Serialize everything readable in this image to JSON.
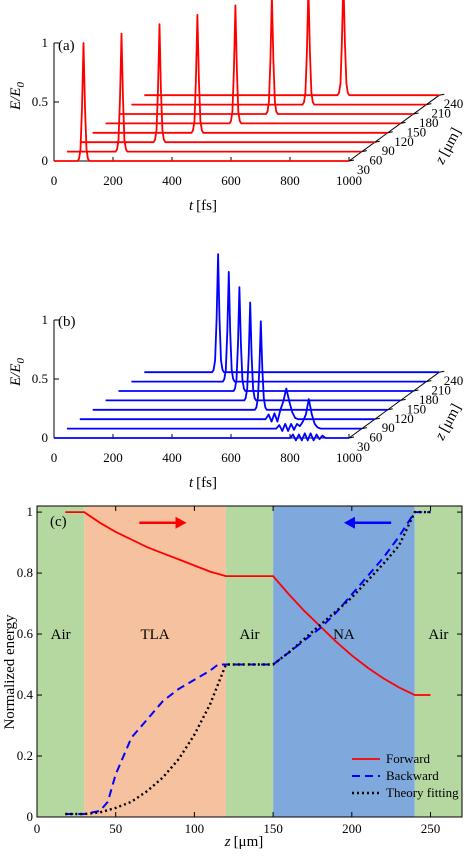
{
  "chart_data": [
    {
      "panel": "(a)",
      "type": "line",
      "ylabel": "E/E",
      "ylabel_sub": "0",
      "xlabel_prefix": "t",
      "xlabel_unit": "[fs]",
      "zlabel_prefix": "z",
      "zlabel_unit": "[μm]",
      "x_ticks": [
        "0",
        "200",
        "400",
        "600",
        "800",
        "1000"
      ],
      "y_ticks": [
        "0",
        "0.5",
        "1"
      ],
      "z_ticks": [
        "30",
        "60",
        "90",
        "120",
        "150",
        "180",
        "210",
        "240"
      ],
      "x_range": [
        0,
        1000
      ],
      "y_range": [
        0,
        1
      ],
      "z_values": [
        30,
        60,
        90,
        120,
        150,
        180,
        210,
        240
      ],
      "color": "#ff0000",
      "series": [
        {
          "z": 30,
          "x": [
            0,
            80,
            85,
            90,
            95,
            100,
            105,
            110,
            115,
            120,
            1000
          ],
          "y": [
            0,
            0,
            0.02,
            0.1,
            0.45,
            1.0,
            0.45,
            0.1,
            0.02,
            0,
            0
          ]
        },
        {
          "z": 60,
          "x": [
            0,
            165,
            170,
            175,
            180,
            185,
            190,
            195,
            200,
            205,
            1000
          ],
          "y": [
            0,
            0,
            0.02,
            0.1,
            0.45,
            1.0,
            0.45,
            0.1,
            0.02,
            0,
            0
          ]
        },
        {
          "z": 90,
          "x": [
            0,
            250,
            255,
            260,
            265,
            270,
            275,
            280,
            285,
            290,
            1000
          ],
          "y": [
            0,
            0,
            0.02,
            0.1,
            0.45,
            1.0,
            0.45,
            0.1,
            0.02,
            0,
            0
          ]
        },
        {
          "z": 120,
          "x": [
            0,
            335,
            340,
            345,
            350,
            355,
            360,
            365,
            370,
            375,
            1000
          ],
          "y": [
            0,
            0,
            0.02,
            0.1,
            0.45,
            1.0,
            0.45,
            0.1,
            0.02,
            0,
            0
          ]
        },
        {
          "z": 150,
          "x": [
            0,
            420,
            425,
            430,
            435,
            440,
            445,
            450,
            455,
            460,
            1000
          ],
          "y": [
            0,
            0,
            0.02,
            0.1,
            0.45,
            1.0,
            0.45,
            0.1,
            0.02,
            0,
            0
          ]
        },
        {
          "z": 180,
          "x": [
            0,
            500,
            505,
            510,
            515,
            520,
            525,
            530,
            535,
            540,
            1000
          ],
          "y": [
            0,
            0,
            0.02,
            0.1,
            0.45,
            1.0,
            0.45,
            0.1,
            0.02,
            0,
            0
          ]
        },
        {
          "z": 210,
          "x": [
            0,
            580,
            585,
            590,
            595,
            600,
            605,
            610,
            615,
            620,
            1000
          ],
          "y": [
            0,
            0,
            0.02,
            0.1,
            0.45,
            1.0,
            0.45,
            0.1,
            0.02,
            0,
            0
          ]
        },
        {
          "z": 240,
          "x": [
            0,
            655,
            660,
            665,
            670,
            675,
            680,
            685,
            690,
            695,
            1000
          ],
          "y": [
            0,
            0,
            0.02,
            0.1,
            0.45,
            1.0,
            0.45,
            0.1,
            0.02,
            0,
            0
          ]
        }
      ]
    },
    {
      "panel": "(b)",
      "type": "line",
      "ylabel": "E/E",
      "ylabel_sub": "0",
      "xlabel_prefix": "t",
      "xlabel_unit": "[fs]",
      "zlabel_prefix": "z",
      "zlabel_unit": "[μm]",
      "x_ticks": [
        "0",
        "200",
        "400",
        "600",
        "800",
        "1000"
      ],
      "y_ticks": [
        "0",
        "0.5",
        "1"
      ],
      "z_ticks": [
        "30",
        "60",
        "90",
        "120",
        "150",
        "180",
        "210",
        "240"
      ],
      "x_range": [
        0,
        1000
      ],
      "y_range": [
        0,
        1
      ],
      "z_values": [
        30,
        60,
        90,
        120,
        150,
        180,
        210,
        240
      ],
      "color": "#0000ff",
      "series": [
        {
          "z": 30,
          "x": [
            0,
            800,
            810,
            820,
            830,
            840,
            850,
            860,
            870,
            880,
            890,
            900,
            910,
            920,
            930,
            1000
          ],
          "y": [
            0,
            0,
            0.03,
            -0.02,
            0.03,
            -0.02,
            0.04,
            -0.02,
            0.04,
            -0.02,
            0.03,
            -0.01,
            0.02,
            0,
            0,
            0
          ]
        },
        {
          "z": 60,
          "x": [
            0,
            710,
            720,
            730,
            740,
            750,
            760,
            770,
            780,
            790,
            800,
            810,
            820,
            830,
            840,
            850,
            860,
            1000
          ],
          "y": [
            0,
            0,
            0.03,
            -0.02,
            0.04,
            -0.02,
            0.04,
            -0.01,
            0.04,
            0.02,
            0.06,
            0.12,
            0.25,
            0.12,
            0.04,
            0.01,
            0,
            0
          ]
        },
        {
          "z": 90,
          "x": [
            0,
            630,
            640,
            650,
            660,
            670,
            680,
            690,
            700,
            710,
            720,
            730,
            740,
            1000
          ],
          "y": [
            0,
            0,
            0.04,
            -0.02,
            0.05,
            -0.02,
            0.08,
            0.15,
            0.26,
            0.15,
            0.06,
            0.01,
            0,
            0
          ]
        },
        {
          "z": 120,
          "x": [
            0,
            550,
            555,
            560,
            565,
            570,
            575,
            580,
            585,
            590,
            1000
          ],
          "y": [
            0,
            0,
            0.02,
            0.1,
            0.35,
            0.75,
            0.35,
            0.1,
            0.02,
            0,
            0
          ]
        },
        {
          "z": 150,
          "x": [
            0,
            470,
            475,
            480,
            485,
            490,
            495,
            500,
            505,
            510,
            1000
          ],
          "y": [
            0,
            0,
            0.02,
            0.1,
            0.38,
            0.83,
            0.38,
            0.1,
            0.02,
            0,
            0
          ]
        },
        {
          "z": 180,
          "x": [
            0,
            390,
            395,
            400,
            405,
            410,
            415,
            420,
            425,
            430,
            1000
          ],
          "y": [
            0,
            0,
            0.02,
            0.1,
            0.4,
            0.88,
            0.4,
            0.1,
            0.02,
            0,
            0
          ]
        },
        {
          "z": 210,
          "x": [
            0,
            310,
            315,
            320,
            325,
            330,
            335,
            340,
            345,
            350,
            1000
          ],
          "y": [
            0,
            0,
            0.02,
            0.1,
            0.42,
            0.93,
            0.42,
            0.1,
            0.02,
            0,
            0
          ]
        },
        {
          "z": 240,
          "x": [
            0,
            230,
            235,
            240,
            245,
            250,
            255,
            260,
            265,
            270,
            1000
          ],
          "y": [
            0,
            0,
            0.02,
            0.1,
            0.45,
            1.0,
            0.45,
            0.1,
            0.02,
            0,
            0
          ]
        }
      ]
    },
    {
      "panel": "(c)",
      "type": "line",
      "ylabel": "Normalized energy",
      "xlabel_prefix": "z",
      "xlabel_unit": "[μm]",
      "xlim": [
        0,
        270
      ],
      "ylim": [
        0,
        1.02
      ],
      "x_ticks": [
        0,
        50,
        100,
        150,
        200,
        250
      ],
      "y_ticks": [
        0,
        0.2,
        0.4,
        0.6,
        0.8,
        1
      ],
      "regions": [
        {
          "label": "Air",
          "x0": 0,
          "x1": 30,
          "color": "#b5d7a0"
        },
        {
          "label": "TLA",
          "x0": 30,
          "x1": 120,
          "color": "#f6c19e"
        },
        {
          "label": "Air",
          "x0": 120,
          "x1": 150,
          "color": "#b5d7a0"
        },
        {
          "label": "NA",
          "x0": 150,
          "x1": 240,
          "color": "#7fa9dd"
        },
        {
          "label": "Air",
          "x0": 240,
          "x1": 270,
          "color": "#b5d7a0"
        }
      ],
      "arrows": [
        {
          "direction": "right",
          "color": "#ff0000",
          "x_from": 65,
          "x_to": 95,
          "y": 0.965
        },
        {
          "direction": "left",
          "color": "#0000ff",
          "x_from": 225,
          "x_to": 195,
          "y": 0.965
        }
      ],
      "series": [
        {
          "name": "Forward",
          "style": "solid",
          "color": "#ff0000",
          "x": [
            18,
            30,
            40,
            50,
            60,
            70,
            80,
            90,
            100,
            110,
            120,
            150,
            160,
            170,
            180,
            190,
            200,
            210,
            220,
            230,
            240,
            250
          ],
          "y": [
            1,
            1,
            0.965,
            0.935,
            0.91,
            0.885,
            0.865,
            0.845,
            0.825,
            0.805,
            0.79,
            0.79,
            0.73,
            0.675,
            0.625,
            0.575,
            0.53,
            0.49,
            0.455,
            0.425,
            0.4,
            0.4
          ]
        },
        {
          "name": "Backward",
          "style": "dashed",
          "color": "#0000ff",
          "x": [
            18,
            30,
            40,
            45,
            50,
            55,
            60,
            70,
            80,
            90,
            100,
            110,
            115,
            120,
            150,
            160,
            170,
            180,
            190,
            200,
            210,
            220,
            230,
            240,
            250
          ],
          "y": [
            0.01,
            0.01,
            0.02,
            0.05,
            0.14,
            0.2,
            0.26,
            0.32,
            0.38,
            0.42,
            0.45,
            0.48,
            0.5,
            0.5,
            0.5,
            0.54,
            0.58,
            0.62,
            0.67,
            0.73,
            0.79,
            0.85,
            0.92,
            1,
            1
          ]
        },
        {
          "name": "Theory fitting",
          "style": "dotted",
          "color": "#000000",
          "x": [
            18,
            30,
            40,
            50,
            60,
            70,
            80,
            90,
            100,
            110,
            120,
            150,
            160,
            170,
            180,
            190,
            200,
            210,
            220,
            230,
            240,
            250
          ],
          "y": [
            0.01,
            0.01,
            0.015,
            0.03,
            0.05,
            0.085,
            0.13,
            0.19,
            0.27,
            0.37,
            0.5,
            0.5,
            0.54,
            0.585,
            0.63,
            0.675,
            0.72,
            0.775,
            0.83,
            0.89,
            1,
            1
          ]
        }
      ],
      "legend": {
        "placement": "bottom-right"
      }
    }
  ]
}
